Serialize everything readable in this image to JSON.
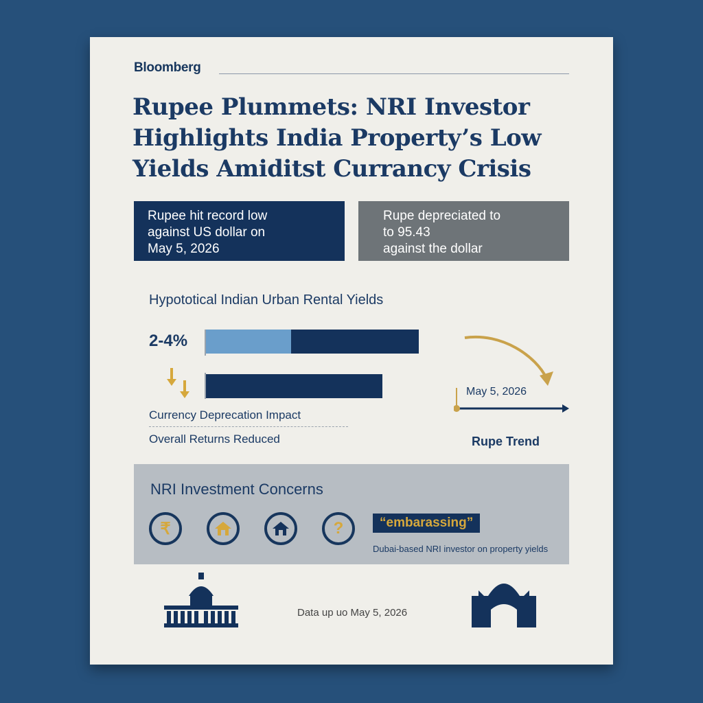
{
  "brand": "Bloomberg",
  "headline": "Rupee Plummets: NRI Investor Highlights India Property’s Low Yields Amiditst Currancy Crisis",
  "boxes": {
    "left": "Rupee hit record low\nagainst US dollar on\nMay 5, 2026",
    "right": "Rupe depreciated to\nto 95.43\nagainst the dollar"
  },
  "chart_data": {
    "type": "bar",
    "title": "Hypototical Indian Urban Rental Yields",
    "bar_label": "2-4%",
    "bars": [
      {
        "segments": [
          0.4,
          0.6
        ],
        "colors": [
          "#6a9ecb",
          "#14325b"
        ],
        "total": 1.0
      },
      {
        "segments": [
          0.83
        ],
        "colors": [
          "#14325b"
        ],
        "total": 0.83
      }
    ],
    "captions": [
      "Currency Deprecation Impact",
      "Overall Returns Reduced"
    ]
  },
  "trend": {
    "date": "May 5, 2026",
    "label": "Rupe Trend"
  },
  "concerns": {
    "title": "NRI Investment Concerns",
    "icons": [
      {
        "name": "rupee-icon",
        "glyph": "₹"
      },
      {
        "name": "house-icon",
        "glyph": "⌂"
      },
      {
        "name": "home-icon",
        "glyph": "⌂"
      },
      {
        "name": "question-icon",
        "glyph": "?"
      }
    ],
    "quote": "“embarassing”",
    "quote_attr": "Dubai-based NRI investor on property yields"
  },
  "footnote": "Data up uo May 5, 2026",
  "colors": {
    "background": "#26507a",
    "navy": "#14325b",
    "gold": "#d6a83c",
    "light_blue": "#6a9ecb",
    "grey_box": "#6e7478",
    "panel": "#b7bdc3"
  }
}
